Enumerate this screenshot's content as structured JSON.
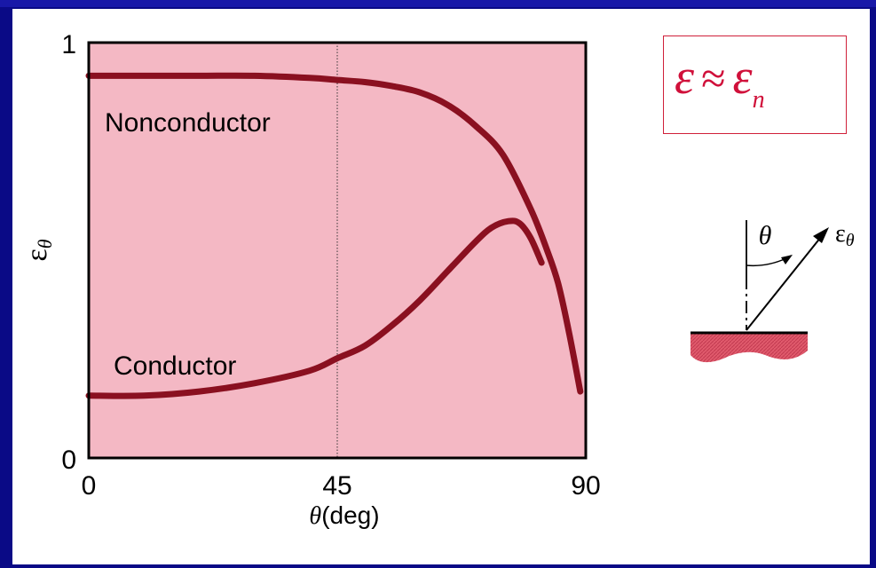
{
  "formula": {
    "main": "ε ≈ ε",
    "lhs": "ε",
    "op": "≈",
    "rhs": "ε",
    "sub": "n"
  },
  "diagram": {
    "angle_label": "θ",
    "vector_label": "ε",
    "vector_sub": "θ"
  },
  "colors": {
    "background": "#0a0a86",
    "plot_fill": "#f4b8c4",
    "curve": "#8a1020",
    "formula": "#d0103a",
    "surface": "#e05a6c"
  },
  "chart_data": {
    "type": "line",
    "xlabel": "θ(deg)",
    "xlabel_symbol": "θ",
    "xlabel_unit": "(deg)",
    "ylabel": "εθ",
    "ylabel_symbol": "ε",
    "ylabel_sub": "θ",
    "xlim": [
      0,
      90
    ],
    "ylim": [
      0,
      1
    ],
    "xticks": [
      0,
      45,
      90
    ],
    "yticks": [
      0,
      1
    ],
    "grid": false,
    "reference_lines": [
      {
        "axis": "x",
        "value": 45,
        "style": "dotted"
      }
    ],
    "series": [
      {
        "name": "Nonconductor",
        "x": [
          0,
          10,
          20,
          30,
          40,
          45,
          50,
          55,
          60,
          65,
          70,
          75,
          80,
          83,
          85,
          87,
          89
        ],
        "values": [
          0.92,
          0.92,
          0.92,
          0.92,
          0.915,
          0.91,
          0.905,
          0.895,
          0.88,
          0.85,
          0.8,
          0.73,
          0.6,
          0.5,
          0.42,
          0.3,
          0.16
        ]
      },
      {
        "name": "Conductor",
        "x": [
          0,
          10,
          20,
          30,
          40,
          45,
          50,
          55,
          60,
          65,
          70,
          73,
          76,
          78,
          80,
          82
        ],
        "values": [
          0.15,
          0.15,
          0.16,
          0.18,
          0.21,
          0.24,
          0.27,
          0.32,
          0.38,
          0.45,
          0.52,
          0.555,
          0.57,
          0.565,
          0.53,
          0.47
        ]
      }
    ]
  }
}
